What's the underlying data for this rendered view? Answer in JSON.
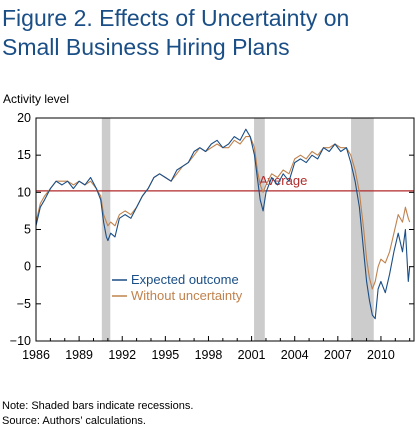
{
  "chart_data": {
    "type": "line",
    "title": "Figure 2. Effects of Uncertainty on\nSmall Business Hiring Plans",
    "ylabel": "Activity level",
    "xlabel": "",
    "xlim": [
      1986.0,
      2012.3
    ],
    "ylim": [
      -10,
      20
    ],
    "x_ticks": [
      "1986",
      "1989",
      "1992",
      "1995",
      "1998",
      "2001",
      "2004",
      "2007",
      "2010"
    ],
    "x_tick_values": [
      1986,
      1989,
      1992,
      1995,
      1998,
      2001,
      2004,
      2007,
      2010
    ],
    "y_ticks": [
      "20",
      "15",
      "10",
      "5",
      "0",
      "−5",
      "−10"
    ],
    "y_tick_values": [
      20,
      15,
      10,
      5,
      0,
      -5,
      -10
    ],
    "grid": false,
    "legend_position": "lower-left",
    "recessions": [
      [
        1990.58,
        1991.17
      ],
      [
        2001.17,
        2001.92
      ],
      [
        2007.92,
        2009.5
      ]
    ],
    "reference_line": {
      "label": "Average",
      "value": 10.2,
      "color": "#b22a2a"
    },
    "series": [
      {
        "name": "Expected outcome",
        "color": "#1a4e86",
        "x": [
          1986.0,
          1986.3,
          1986.6,
          1987.0,
          1987.4,
          1987.8,
          1988.2,
          1988.6,
          1989.0,
          1989.4,
          1989.8,
          1990.2,
          1990.5,
          1990.7,
          1990.9,
          1991.0,
          1991.2,
          1991.5,
          1991.8,
          1992.2,
          1992.6,
          1993.0,
          1993.4,
          1993.8,
          1994.2,
          1994.6,
          1995.0,
          1995.4,
          1995.8,
          1996.2,
          1996.6,
          1997.0,
          1997.4,
          1997.8,
          1998.2,
          1998.6,
          1999.0,
          1999.4,
          1999.8,
          2000.2,
          2000.6,
          2000.9,
          2001.2,
          2001.4,
          2001.6,
          2001.8,
          2002.0,
          2002.4,
          2002.8,
          2003.2,
          2003.6,
          2004.0,
          2004.4,
          2004.8,
          2005.2,
          2005.6,
          2006.0,
          2006.4,
          2006.8,
          2007.2,
          2007.6,
          2007.9,
          2008.2,
          2008.5,
          2008.8,
          2009.0,
          2009.2,
          2009.4,
          2009.6,
          2009.8,
          2010.0,
          2010.3,
          2010.6,
          2010.9,
          2011.2,
          2011.5,
          2011.7,
          2011.9,
          2012.0
        ],
        "values": [
          5.5,
          8.0,
          9.0,
          10.5,
          11.5,
          11.0,
          11.5,
          10.5,
          11.5,
          11.0,
          12.0,
          10.5,
          9.0,
          6.0,
          4.0,
          3.5,
          4.5,
          4.0,
          6.5,
          7.0,
          6.5,
          8.0,
          9.5,
          10.5,
          12.0,
          12.5,
          12.0,
          11.5,
          13.0,
          13.5,
          14.0,
          15.5,
          16.0,
          15.5,
          16.5,
          17.0,
          16.0,
          16.5,
          17.5,
          17.0,
          18.5,
          17.5,
          15.0,
          12.0,
          9.0,
          7.5,
          10.0,
          12.0,
          11.0,
          12.5,
          11.5,
          14.0,
          14.5,
          14.0,
          15.0,
          14.5,
          16.0,
          15.5,
          16.5,
          15.5,
          16.0,
          14.0,
          11.5,
          8.0,
          2.0,
          -2.0,
          -4.5,
          -6.5,
          -7.0,
          -3.0,
          -2.0,
          -3.5,
          -1.0,
          2.0,
          4.5,
          2.0,
          5.0,
          -2.0,
          0.0
        ]
      },
      {
        "name": "Without uncertainty",
        "color": "#c0824d",
        "x": [
          1986.0,
          1986.3,
          1986.6,
          1987.0,
          1987.4,
          1987.8,
          1988.2,
          1988.6,
          1989.0,
          1989.4,
          1989.8,
          1990.2,
          1990.5,
          1990.7,
          1990.9,
          1991.0,
          1991.2,
          1991.5,
          1991.8,
          1992.2,
          1992.6,
          1993.0,
          1993.4,
          1993.8,
          1994.2,
          1994.6,
          1995.0,
          1995.4,
          1995.8,
          1996.2,
          1996.6,
          1997.0,
          1997.4,
          1997.8,
          1998.2,
          1998.6,
          1999.0,
          1999.4,
          1999.8,
          2000.2,
          2000.6,
          2000.9,
          2001.2,
          2001.4,
          2001.6,
          2001.8,
          2002.0,
          2002.4,
          2002.8,
          2003.2,
          2003.6,
          2004.0,
          2004.4,
          2004.8,
          2005.2,
          2005.6,
          2006.0,
          2006.4,
          2006.8,
          2007.2,
          2007.6,
          2007.9,
          2008.2,
          2008.5,
          2008.8,
          2009.0,
          2009.2,
          2009.4,
          2009.6,
          2009.8,
          2010.0,
          2010.3,
          2010.6,
          2010.9,
          2011.2,
          2011.5,
          2011.7,
          2011.9,
          2012.0
        ],
        "values": [
          6.0,
          8.5,
          9.5,
          10.5,
          11.5,
          11.5,
          11.5,
          11.0,
          11.5,
          11.0,
          11.5,
          10.5,
          9.5,
          7.0,
          6.0,
          5.5,
          6.0,
          5.5,
          7.0,
          7.5,
          7.0,
          8.0,
          9.5,
          10.5,
          12.0,
          12.5,
          12.0,
          11.5,
          12.5,
          13.5,
          14.0,
          15.0,
          16.0,
          15.5,
          16.0,
          16.5,
          16.0,
          16.0,
          17.0,
          16.5,
          17.5,
          17.5,
          16.0,
          13.0,
          11.0,
          10.0,
          11.0,
          12.5,
          12.0,
          13.0,
          12.5,
          14.5,
          15.0,
          14.5,
          15.5,
          15.0,
          16.0,
          16.0,
          16.5,
          16.0,
          16.0,
          15.0,
          13.0,
          10.0,
          5.0,
          1.0,
          -1.5,
          -3.0,
          -2.0,
          0.0,
          1.0,
          0.5,
          2.0,
          4.5,
          7.0,
          6.0,
          8.0,
          6.5,
          6.0
        ]
      }
    ]
  },
  "notes": {
    "note1": "Note: Shaded bars indicate recessions.",
    "note2": "Source: Authors’ calculations."
  }
}
